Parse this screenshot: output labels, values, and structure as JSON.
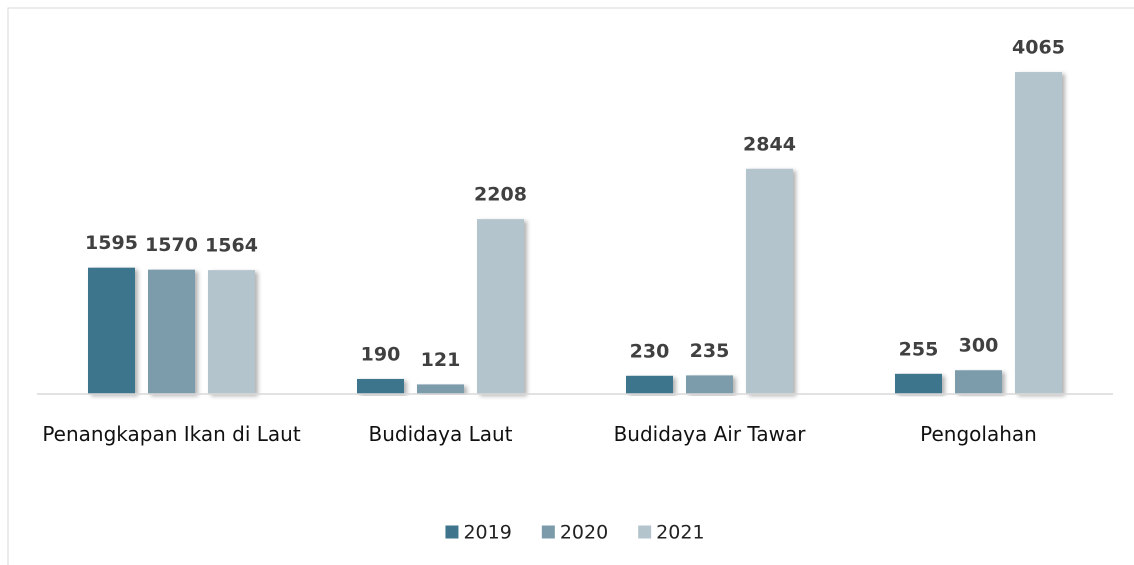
{
  "chart_data": {
    "type": "bar",
    "categories": [
      "Penangkapan Ikan di Laut",
      "Budidaya Laut",
      "Budidaya Air Tawar",
      "Pengolahan"
    ],
    "series": [
      {
        "name": "2019",
        "color": "#3e758c",
        "values": [
          1595,
          190,
          230,
          255
        ]
      },
      {
        "name": "2020",
        "color": "#7b9bab",
        "values": [
          1570,
          121,
          235,
          300
        ]
      },
      {
        "name": "2021",
        "color": "#b3c4cd",
        "values": [
          1564,
          2208,
          2844,
          4065
        ]
      }
    ],
    "ylim": [
      0,
      4500
    ],
    "legend": "bottom"
  }
}
